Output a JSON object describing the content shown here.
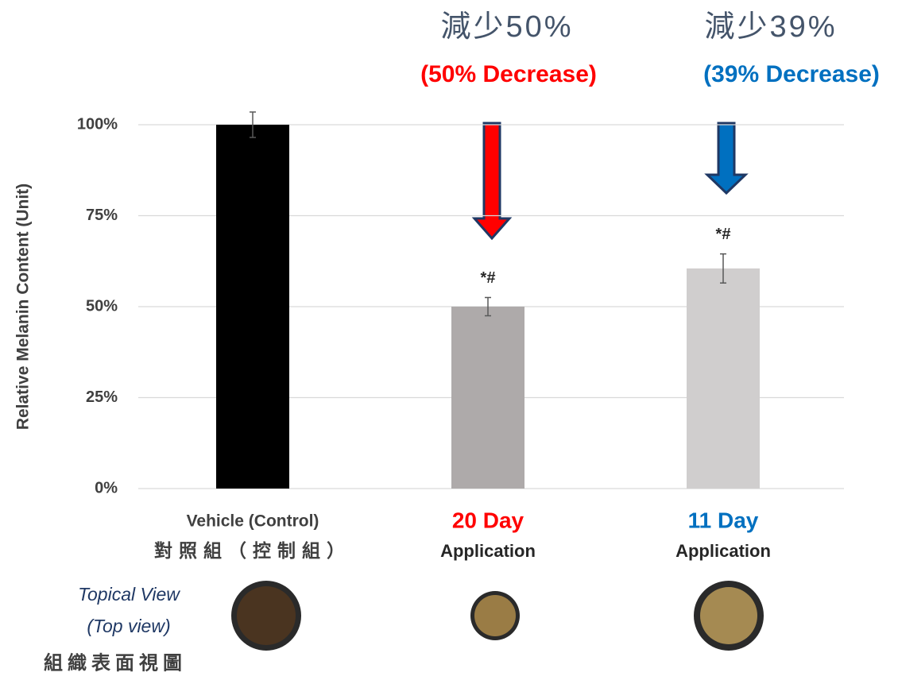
{
  "chart_data": {
    "type": "bar",
    "y_label": "Relative Melanin Content (Unit)",
    "categories": [
      "Vehicle (Control)",
      "20 Day",
      "11 Day"
    ],
    "category_sublabels": [
      "對照組（控制組）",
      "Application",
      "Application"
    ],
    "category_colors": [
      "#404040",
      "#ff0000",
      "#0070c0"
    ],
    "values": [
      100,
      50,
      60.5
    ],
    "errors": [
      3.5,
      2.5,
      4
    ],
    "colors": [
      "#000000",
      "#aeaaaa",
      "#d0cece"
    ],
    "significance_labels": [
      null,
      "*#",
      "*#"
    ],
    "ylim": [
      0,
      100
    ],
    "yticks": [
      {
        "value": 0,
        "label": "0%"
      },
      {
        "value": 25,
        "label": "25%"
      },
      {
        "value": 50,
        "label": "50%"
      },
      {
        "value": 75,
        "label": "75%"
      },
      {
        "value": 100,
        "label": "100%"
      }
    ],
    "grid": true,
    "annotations": [
      {
        "text": "減少50%",
        "subtext": "(50% Decrease)",
        "color": "#ff0000"
      },
      {
        "text": "減少39%",
        "subtext": "(39% Decrease)",
        "color": "#0070c0"
      }
    ],
    "view_label": [
      "Topical View",
      "(Top view)"
    ],
    "view_label_zh": "組織表面視圖"
  }
}
